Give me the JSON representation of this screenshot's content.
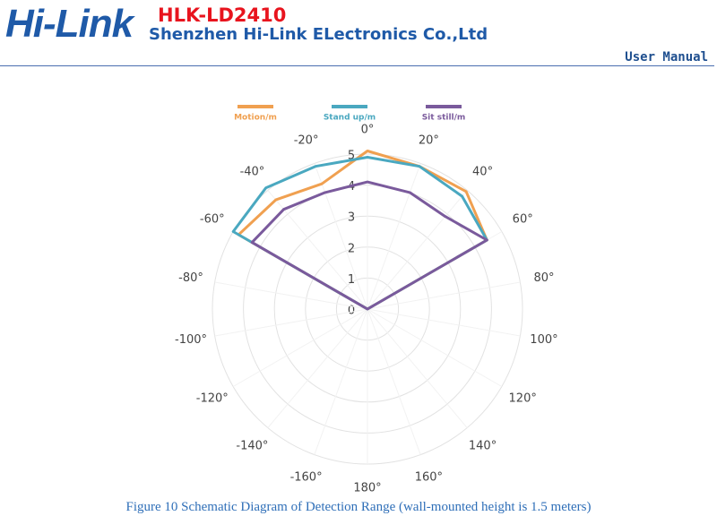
{
  "header": {
    "logo": "Hi-Link",
    "model": "HLK-LD2410",
    "company": "Shenzhen Hi-Link ELectronics Co.,Ltd",
    "doc": "User Manual"
  },
  "chart_data": {
    "type": "radar",
    "rlim": [
      0,
      5
    ],
    "rticks": [
      0,
      1,
      2,
      3,
      4,
      5
    ],
    "thetaticks": [
      {
        "value": 0,
        "label": "0°"
      },
      {
        "value": 20,
        "label": "20°"
      },
      {
        "value": 40,
        "label": "40°"
      },
      {
        "value": 60,
        "label": "60°"
      },
      {
        "value": 80,
        "label": "80°"
      },
      {
        "value": 100,
        "label": "100°"
      },
      {
        "value": 120,
        "label": "120°"
      },
      {
        "value": 140,
        "label": "140°"
      },
      {
        "value": 160,
        "label": "160°"
      },
      {
        "value": 180,
        "label": "180°"
      },
      {
        "value": -160,
        "label": "-160°"
      },
      {
        "value": -140,
        "label": "-140°"
      },
      {
        "value": -120,
        "label": "-120°"
      },
      {
        "value": -100,
        "label": "-100°"
      },
      {
        "value": -80,
        "label": "-80°"
      },
      {
        "value": -60,
        "label": "-60°"
      },
      {
        "value": -40,
        "label": "-40°"
      },
      {
        "value": -20,
        "label": "-20°"
      }
    ],
    "angles": [
      -60,
      -40,
      -20,
      0,
      20,
      40,
      60
    ],
    "series": [
      {
        "name": "Motion/m",
        "color": "#f0a050",
        "values": [
          4.8,
          4.6,
          4.3,
          5.1,
          4.9,
          4.95,
          4.45
        ]
      },
      {
        "name": "Stand up/m",
        "color": "#4aa8c0",
        "values": [
          5.0,
          5.1,
          4.9,
          4.9,
          4.9,
          4.75,
          4.45
        ]
      },
      {
        "name": "Sit still/m",
        "color": "#7a5a9c",
        "values": [
          4.3,
          4.2,
          4.0,
          4.1,
          4.0,
          3.9,
          4.45
        ]
      }
    ]
  },
  "caption": "Figure 10 Schematic Diagram of Detection Range (wall-mounted height is 1.5 meters)"
}
